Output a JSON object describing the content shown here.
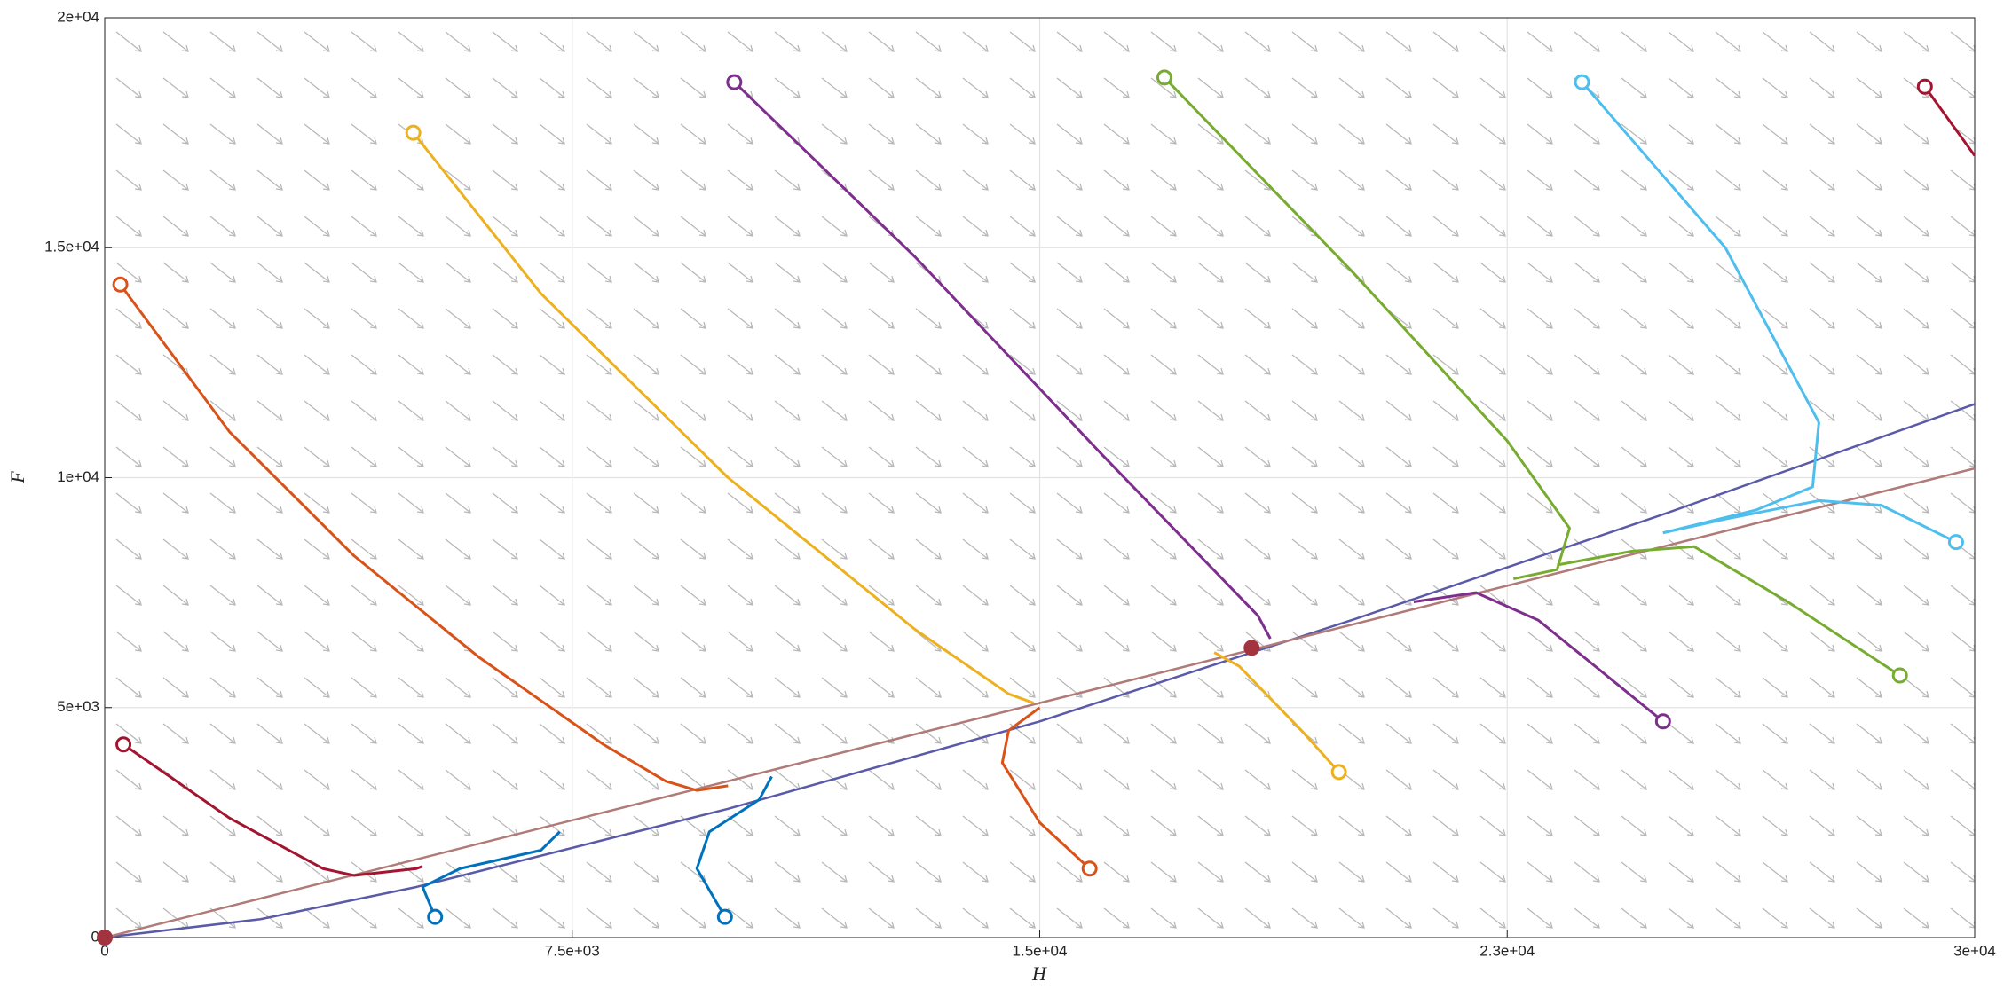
{
  "chart_data": {
    "type": "phase",
    "x_label": "H",
    "y_label": "F",
    "xlim": [
      0,
      30000
    ],
    "ylim": [
      0,
      20000
    ],
    "xticks": [
      0,
      {
        "value": 7500,
        "label": "7.5e+03"
      },
      {
        "value": 15000,
        "label": "1.5e+04"
      },
      {
        "value": 22500,
        "label": "2.3e+04"
      },
      {
        "value": 30000,
        "label": "3e+04"
      }
    ],
    "yticks": [
      0,
      {
        "value": 5000,
        "label": "5e+03"
      },
      {
        "value": 10000,
        "label": "1e+04"
      },
      {
        "value": 15000,
        "label": "1.5e+04"
      },
      {
        "value": 20000,
        "label": "2e+04"
      }
    ],
    "grid": true,
    "nullclines": [
      {
        "color": "#5a5aa8",
        "x": [
          0,
          2500,
          5000,
          10000,
          15000,
          20000,
          25000,
          30000
        ],
        "y": [
          0,
          400,
          1100,
          2800,
          4700,
          6900,
          9200,
          11600
        ]
      },
      {
        "color": "#b07a78",
        "x": [
          0,
          30000
        ],
        "y": [
          0,
          10200
        ]
      }
    ],
    "series": [
      {
        "color": "#a2142f",
        "x": [
          300,
          2000,
          3500,
          4000,
          5000,
          5100
        ],
        "y": [
          4200,
          2600,
          1500,
          1350,
          1500,
          1550
        ]
      },
      {
        "color": "#a2142f",
        "x": [
          29200,
          30000
        ],
        "y": [
          18500,
          17000
        ]
      },
      {
        "color": "#d95319",
        "x": [
          250,
          2000,
          4000,
          6000,
          8000,
          9000,
          9500,
          10000
        ],
        "y": [
          14200,
          11000,
          8300,
          6100,
          4200,
          3400,
          3200,
          3300
        ]
      },
      {
        "color": "#d95319",
        "x": [
          15800,
          15000,
          14400,
          14500,
          15000
        ],
        "y": [
          1500,
          2500,
          3800,
          4500,
          5000
        ]
      },
      {
        "color": "#edb120",
        "x": [
          4950,
          7000,
          10000,
          13000,
          14500,
          14900
        ],
        "y": [
          17500,
          14000,
          10000,
          6700,
          5300,
          5100
        ]
      },
      {
        "color": "#edb120",
        "x": [
          19800,
          19200,
          18200,
          17800
        ],
        "y": [
          3600,
          4500,
          5900,
          6200
        ]
      },
      {
        "color": "#7e2f8e",
        "x": [
          10100,
          13000,
          16000,
          18500,
          18700
        ],
        "y": [
          18600,
          14800,
          10500,
          7000,
          6500
        ]
      },
      {
        "color": "#7e2f8e",
        "x": [
          25000,
          24000,
          23000,
          22000,
          21000
        ],
        "y": [
          4700,
          5800,
          6900,
          7500,
          7300
        ]
      },
      {
        "color": "#77ac30",
        "x": [
          17000,
          20000,
          22500,
          23500,
          23300,
          22600
        ],
        "y": [
          18700,
          14500,
          10800,
          8900,
          8000,
          7800
        ]
      },
      {
        "color": "#77ac30",
        "x": [
          28800,
          27000,
          25500,
          24500,
          23300
        ],
        "y": [
          5700,
          7300,
          8500,
          8400,
          8100
        ]
      },
      {
        "color": "#4dbeee",
        "x": [
          23700,
          26000,
          27500,
          27400,
          26500,
          25000
        ],
        "y": [
          18600,
          15000,
          11200,
          9800,
          9300,
          8800
        ]
      },
      {
        "color": "#4dbeee",
        "x": [
          29700,
          28500,
          27500,
          26000,
          25000
        ],
        "y": [
          8600,
          9400,
          9500,
          9100,
          8800
        ]
      },
      {
        "color": "#0072bd",
        "x": [
          5300,
          5100,
          5700,
          7000,
          7300
        ],
        "y": [
          450,
          1100,
          1500,
          1900,
          2300
        ]
      },
      {
        "color": "#0072bd",
        "x": [
          9950,
          9500,
          9700,
          10500,
          10700
        ],
        "y": [
          450,
          1500,
          2300,
          3000,
          3500
        ]
      }
    ],
    "start_marker": true,
    "equilibria": {
      "color": "#a2343f",
      "x": [
        0,
        18400
      ],
      "y": [
        0,
        6300
      ]
    }
  }
}
